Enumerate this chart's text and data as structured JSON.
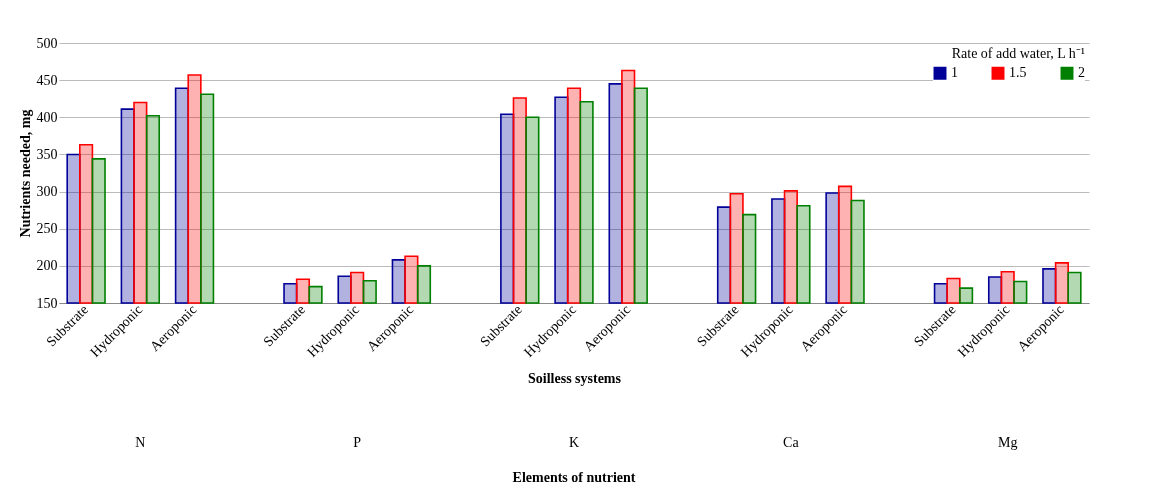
{
  "chart_data": {
    "type": "bar",
    "xlabel": "Soilless systems",
    "ylabel": "Nutrients needed, mg",
    "legend_title": "Rate of add water, L h⁻¹",
    "legend": "top right",
    "grid": "y",
    "categories": [
      "Substrate",
      "Hydroponic",
      "Aeroponic",
      null,
      "Substrate",
      "Hydroponic",
      "Aeroponic",
      null,
      "Substrate",
      "Hydroponic",
      "Aeroponic",
      null,
      "Substrate",
      "Hydroponic",
      "Aeroponic",
      null,
      "Substrate",
      "Hydroponic",
      "Aeroponic"
    ],
    "series": [
      {
        "name": "1",
        "color": "#000099",
        "values": [
          350,
          411,
          439,
          null,
          176,
          186,
          208,
          null,
          404,
          427,
          445,
          null,
          279,
          290,
          298,
          null,
          176,
          185,
          196
        ]
      },
      {
        "name": "1.5",
        "color": "#ff0000",
        "values": [
          363,
          420,
          457,
          null,
          182,
          191,
          213,
          null,
          426,
          439,
          463,
          null,
          297,
          301,
          307,
          null,
          183,
          192,
          204
        ]
      },
      {
        "name": "2",
        "color": "#008000",
        "values": [
          344,
          402,
          431,
          null,
          172,
          180,
          200,
          null,
          400,
          421,
          439,
          null,
          269,
          281,
          288,
          null,
          170,
          179,
          191
        ]
      }
    ],
    "ylim": [
      150,
      500
    ],
    "yticks": [
      150,
      200,
      250,
      300,
      350,
      400,
      450,
      500
    ],
    "annotations": [
      "N",
      "P",
      "K",
      "Ca",
      "Mg",
      "Elements of nutrient"
    ]
  }
}
